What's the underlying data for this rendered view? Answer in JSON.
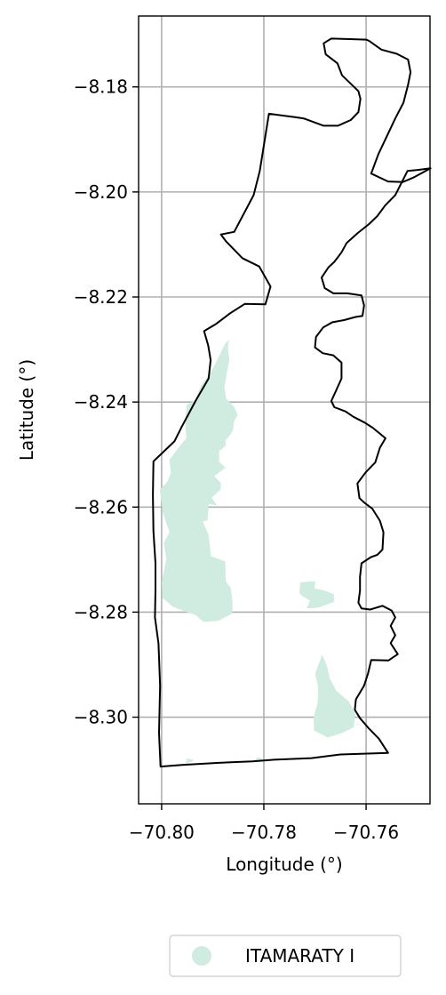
{
  "chart_data": {
    "type": "map",
    "xlabel": "Longitude (°)",
    "ylabel": "Latitude (°)",
    "xlim": [
      -70.8045,
      -70.7475
    ],
    "ylim": [
      -8.3165,
      -8.1665
    ],
    "grid": true,
    "x_ticks": [
      -70.8,
      -70.78,
      -70.76
    ],
    "x_tick_labels": [
      "−70.80",
      "−70.78",
      "−70.76"
    ],
    "y_ticks": [
      -8.18,
      -8.2,
      -8.22,
      -8.24,
      -8.26,
      -8.28,
      -8.3
    ],
    "y_tick_labels": [
      "−8.18",
      "−8.20",
      "−8.22",
      "−8.24",
      "−8.26",
      "−8.28",
      "−8.30"
    ],
    "legend_position": "below",
    "legend": [
      {
        "label": "ITAMARATY I",
        "color": "#d0ebe0"
      }
    ],
    "boundary": {
      "color": "#000000",
      "coords": [
        [
          -70.7557,
          -8.3068
        ],
        [
          -70.7575,
          -8.3041
        ],
        [
          -70.7596,
          -8.302
        ],
        [
          -70.7612,
          -8.3002
        ],
        [
          -70.7622,
          -8.2986
        ],
        [
          -70.762,
          -8.2966
        ],
        [
          -70.7604,
          -8.294
        ],
        [
          -70.7596,
          -8.2916
        ],
        [
          -70.759,
          -8.2891
        ],
        [
          -70.7556,
          -8.2892
        ],
        [
          -70.7538,
          -8.288
        ],
        [
          -70.7552,
          -8.2859
        ],
        [
          -70.7543,
          -8.2844
        ],
        [
          -70.7552,
          -8.2826
        ],
        [
          -70.7543,
          -8.281
        ],
        [
          -70.755,
          -8.2797
        ],
        [
          -70.7568,
          -8.2788
        ],
        [
          -70.7592,
          -8.2795
        ],
        [
          -70.7609,
          -8.2793
        ],
        [
          -70.7615,
          -8.2782
        ],
        [
          -70.7612,
          -8.2759
        ],
        [
          -70.7612,
          -8.2733
        ],
        [
          -70.7609,
          -8.2707
        ],
        [
          -70.759,
          -8.2695
        ],
        [
          -70.7578,
          -8.2691
        ],
        [
          -70.7568,
          -8.2681
        ],
        [
          -70.7566,
          -8.2648
        ],
        [
          -70.7573,
          -8.2626
        ],
        [
          -70.7588,
          -8.2603
        ],
        [
          -70.7603,
          -8.2592
        ],
        [
          -70.7613,
          -8.2583
        ],
        [
          -70.7617,
          -8.2555
        ],
        [
          -70.7601,
          -8.2534
        ],
        [
          -70.7582,
          -8.2515
        ],
        [
          -70.7573,
          -8.2487
        ],
        [
          -70.7562,
          -8.2469
        ],
        [
          -70.7587,
          -8.2449
        ],
        [
          -70.7603,
          -8.2439
        ],
        [
          -70.7625,
          -8.2428
        ],
        [
          -70.764,
          -8.2418
        ],
        [
          -70.7662,
          -8.241
        ],
        [
          -70.7668,
          -8.2398
        ],
        [
          -70.7659,
          -8.2379
        ],
        [
          -70.7648,
          -8.2355
        ],
        [
          -70.7648,
          -8.2325
        ],
        [
          -70.7664,
          -8.2311
        ],
        [
          -70.7685,
          -8.2307
        ],
        [
          -70.77,
          -8.2296
        ],
        [
          -70.7698,
          -8.2276
        ],
        [
          -70.7684,
          -8.2258
        ],
        [
          -70.7666,
          -8.2248
        ],
        [
          -70.7643,
          -8.2244
        ],
        [
          -70.7621,
          -8.2238
        ],
        [
          -70.7607,
          -8.2236
        ],
        [
          -70.7604,
          -8.2216
        ],
        [
          -70.7609,
          -8.2197
        ],
        [
          -70.7637,
          -8.2193
        ],
        [
          -70.7664,
          -8.2193
        ],
        [
          -70.7681,
          -8.2183
        ],
        [
          -70.7687,
          -8.2163
        ],
        [
          -70.7674,
          -8.2144
        ],
        [
          -70.7662,
          -8.2133
        ],
        [
          -70.7648,
          -8.2115
        ],
        [
          -70.7638,
          -8.2097
        ],
        [
          -70.7616,
          -8.2078
        ],
        [
          -70.7594,
          -8.2061
        ],
        [
          -70.7578,
          -8.2046
        ],
        [
          -70.7563,
          -8.2026
        ],
        [
          -70.7543,
          -8.2006
        ],
        [
          -70.7519,
          -8.196
        ],
        [
          -70.7499,
          -8.1958
        ],
        [
          -70.7474,
          -8.1955
        ],
        [
          -70.7506,
          -8.1972
        ],
        [
          -70.7528,
          -8.1981
        ],
        [
          -70.7557,
          -8.198
        ],
        [
          -70.759,
          -8.1965
        ],
        [
          -70.7576,
          -8.1928
        ],
        [
          -70.756,
          -8.1895
        ],
        [
          -70.7543,
          -8.186
        ],
        [
          -70.7527,
          -8.183
        ],
        [
          -70.7518,
          -8.1796
        ],
        [
          -70.7513,
          -8.1772
        ],
        [
          -70.7518,
          -8.1748
        ],
        [
          -70.754,
          -8.1737
        ],
        [
          -70.757,
          -8.1729
        ],
        [
          -70.7593,
          -8.1713
        ],
        [
          -70.7599,
          -8.171
        ],
        [
          -70.7631,
          -8.1709
        ],
        [
          -70.7668,
          -8.1708
        ],
        [
          -70.7683,
          -8.1717
        ],
        [
          -70.7679,
          -8.1738
        ],
        [
          -70.7656,
          -8.1755
        ],
        [
          -70.7647,
          -8.1778
        ],
        [
          -70.763,
          -8.1794
        ],
        [
          -70.7615,
          -8.1808
        ],
        [
          -70.7611,
          -8.1823
        ],
        [
          -70.7615,
          -8.1848
        ],
        [
          -70.763,
          -8.1863
        ],
        [
          -70.7655,
          -8.1874
        ],
        [
          -70.7683,
          -8.1874
        ],
        [
          -70.7722,
          -8.186
        ],
        [
          -70.7736,
          -8.1858
        ],
        [
          -70.779,
          -8.1851
        ],
        [
          -70.7808,
          -8.196
        ],
        [
          -70.782,
          -8.2006
        ],
        [
          -70.7858,
          -8.2076
        ],
        [
          -70.7884,
          -8.2081
        ],
        [
          -70.7874,
          -8.2094
        ],
        [
          -70.7842,
          -8.2126
        ],
        [
          -70.7809,
          -8.2142
        ],
        [
          -70.7787,
          -8.218
        ],
        [
          -70.7797,
          -8.2214
        ],
        [
          -70.7837,
          -8.2213
        ],
        [
          -70.7866,
          -8.2231
        ],
        [
          -70.7893,
          -8.2251
        ],
        [
          -70.7917,
          -8.2265
        ],
        [
          -70.7909,
          -8.2292
        ],
        [
          -70.7904,
          -8.232
        ],
        [
          -70.7908,
          -8.2355
        ],
        [
          -70.7933,
          -8.2397
        ],
        [
          -70.796,
          -8.2446
        ],
        [
          -70.7975,
          -8.2475
        ],
        [
          -70.8016,
          -8.2513
        ],
        [
          -70.8017,
          -8.2577
        ],
        [
          -70.8016,
          -8.2646
        ],
        [
          -70.8012,
          -8.2707
        ],
        [
          -70.8012,
          -8.2757
        ],
        [
          -70.8013,
          -8.281
        ],
        [
          -70.8006,
          -8.286
        ],
        [
          -70.8003,
          -8.294
        ],
        [
          -70.8005,
          -8.303
        ],
        [
          -70.8002,
          -8.3094
        ],
        [
          -70.796,
          -8.3091
        ],
        [
          -70.7888,
          -8.3087
        ],
        [
          -70.7822,
          -8.3084
        ],
        [
          -70.778,
          -8.3081
        ],
        [
          -70.7707,
          -8.3078
        ],
        [
          -70.765,
          -8.3071
        ],
        [
          -70.7557,
          -8.3068
        ]
      ]
    },
    "series": [
      {
        "name": "ITAMARATY I",
        "color": "#d0ebe0",
        "polygons": [
          [
            [
              -70.7867,
              -8.2283
            ],
            [
              -70.787,
              -8.2286
            ],
            [
              -70.7871,
              -8.23
            ],
            [
              -70.7868,
              -8.2318
            ],
            [
              -70.7873,
              -8.2342
            ],
            [
              -70.7878,
              -8.2374
            ],
            [
              -70.7874,
              -8.2394
            ],
            [
              -70.7859,
              -8.2409
            ],
            [
              -70.7852,
              -8.2425
            ],
            [
              -70.7859,
              -8.2436
            ],
            [
              -70.7861,
              -8.2453
            ],
            [
              -70.7865,
              -8.246
            ],
            [
              -70.7875,
              -8.2472
            ],
            [
              -70.7876,
              -8.2484
            ],
            [
              -70.7888,
              -8.2493
            ],
            [
              -70.7888,
              -8.2514
            ],
            [
              -70.7876,
              -8.2525
            ],
            [
              -70.7898,
              -8.2541
            ],
            [
              -70.7885,
              -8.2554
            ],
            [
              -70.7885,
              -8.2566
            ],
            [
              -70.7903,
              -8.2582
            ],
            [
              -70.7893,
              -8.2596
            ],
            [
              -70.7908,
              -8.2593
            ],
            [
              -70.7911,
              -8.2625
            ],
            [
              -70.7921,
              -8.2627
            ],
            [
              -70.7909,
              -8.2652
            ],
            [
              -70.7904,
              -8.2694
            ],
            [
              -70.7876,
              -8.2704
            ],
            [
              -70.7876,
              -8.2716
            ],
            [
              -70.7875,
              -8.2742
            ],
            [
              -70.7865,
              -8.2755
            ],
            [
              -70.7862,
              -8.2782
            ],
            [
              -70.7862,
              -8.2802
            ],
            [
              -70.789,
              -8.2816
            ],
            [
              -70.7918,
              -8.2818
            ],
            [
              -70.7933,
              -8.2805
            ],
            [
              -70.7954,
              -8.2798
            ],
            [
              -70.7978,
              -8.2789
            ],
            [
              -70.7998,
              -8.2772
            ],
            [
              -70.7999,
              -8.2743
            ],
            [
              -70.799,
              -8.2699
            ],
            [
              -70.7995,
              -8.2668
            ],
            [
              -70.7984,
              -8.2648
            ],
            [
              -70.7997,
              -8.2609
            ],
            [
              -70.8003,
              -8.2567
            ],
            [
              -70.7988,
              -8.2552
            ],
            [
              -70.7981,
              -8.2535
            ],
            [
              -70.7984,
              -8.251
            ],
            [
              -70.7963,
              -8.2483
            ],
            [
              -70.7951,
              -8.2469
            ],
            [
              -70.7953,
              -8.2441
            ],
            [
              -70.795,
              -8.2405
            ],
            [
              -70.7935,
              -8.2398
            ],
            [
              -70.7921,
              -8.2367
            ],
            [
              -70.7902,
              -8.2342
            ],
            [
              -70.7887,
              -8.2313
            ],
            [
              -70.7874,
              -8.2287
            ],
            [
              -70.7867,
              -8.2283
            ]
          ],
          [
            [
              -70.77,
              -8.2742
            ],
            [
              -70.7702,
              -8.2755
            ],
            [
              -70.7681,
              -8.276
            ],
            [
              -70.7664,
              -8.2766
            ],
            [
              -70.7663,
              -8.278
            ],
            [
              -70.7695,
              -8.2791
            ],
            [
              -70.7715,
              -8.2792
            ],
            [
              -70.7709,
              -8.2778
            ],
            [
              -70.7726,
              -8.2768
            ],
            [
              -70.773,
              -8.2763
            ],
            [
              -70.7728,
              -8.2744
            ],
            [
              -70.77,
              -8.2742
            ]
          ],
          [
            [
              -70.7686,
              -8.2883
            ],
            [
              -70.7677,
              -8.2903
            ],
            [
              -70.7672,
              -8.2926
            ],
            [
              -70.7659,
              -8.295
            ],
            [
              -70.7635,
              -8.297
            ],
            [
              -70.7622,
              -8.2994
            ],
            [
              -70.7625,
              -8.3019
            ],
            [
              -70.7651,
              -8.3031
            ],
            [
              -70.7675,
              -8.3038
            ],
            [
              -70.7701,
              -8.3025
            ],
            [
              -70.7702,
              -8.3001
            ],
            [
              -70.7694,
              -8.2972
            ],
            [
              -70.7693,
              -8.2943
            ],
            [
              -70.7699,
              -8.2917
            ],
            [
              -70.7686,
              -8.2883
            ]
          ],
          [
            [
              -70.7938,
              -8.3082
            ],
            [
              -70.7949,
              -8.3079
            ],
            [
              -70.7952,
              -8.3088
            ],
            [
              -70.7938,
              -8.3082
            ]
          ],
          [
            [
              -70.7804,
              -8.308
            ],
            [
              -70.7812,
              -8.3077
            ],
            [
              -70.7818,
              -8.3084
            ],
            [
              -70.7804,
              -8.308
            ]
          ]
        ]
      }
    ]
  }
}
